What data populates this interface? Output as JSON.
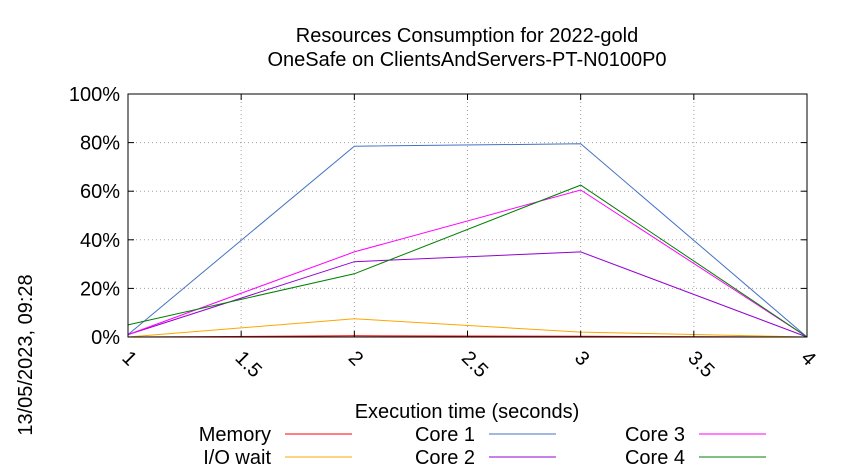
{
  "chart_data": {
    "type": "line",
    "title_line1": "Resources Consumption for 2022-gold",
    "title_line2": "OneSafe on ClientsAndServers-PT-N0100P0",
    "xlabel": "Execution time (seconds)",
    "ylabel": "",
    "side_label": "13/05/2023, 09:28",
    "xlim": [
      1,
      4
    ],
    "ylim": [
      0,
      100
    ],
    "x_ticks": [
      1,
      1.5,
      2,
      2.5,
      3,
      3.5,
      4
    ],
    "x_tick_labels": [
      "1",
      "1.5",
      "2",
      "2.5",
      "3",
      "3.5",
      "4"
    ],
    "y_ticks": [
      0,
      20,
      40,
      60,
      80,
      100
    ],
    "y_tick_labels": [
      "0%",
      "20%",
      "40%",
      "60%",
      "80%",
      "100%"
    ],
    "grid": true,
    "legend_position": "bottom",
    "x": [
      1,
      2,
      3,
      4
    ],
    "series": [
      {
        "name": "Memory",
        "color": "#ff0000",
        "values": [
          0,
          0.5,
          0.3,
          0
        ]
      },
      {
        "name": "I/O wait",
        "color": "#ffa500",
        "values": [
          0,
          7.5,
          2,
          0
        ]
      },
      {
        "name": "Core 1",
        "color": "#4472c4",
        "values": [
          1,
          78.5,
          79.5,
          0
        ]
      },
      {
        "name": "Core 2",
        "color": "#9400d3",
        "values": [
          1,
          31,
          35,
          0
        ]
      },
      {
        "name": "Core 3",
        "color": "#ff00ff",
        "values": [
          1,
          35,
          60.5,
          0
        ]
      },
      {
        "name": "Core 4",
        "color": "#008000",
        "values": [
          5,
          26,
          62.5,
          0
        ]
      }
    ]
  }
}
